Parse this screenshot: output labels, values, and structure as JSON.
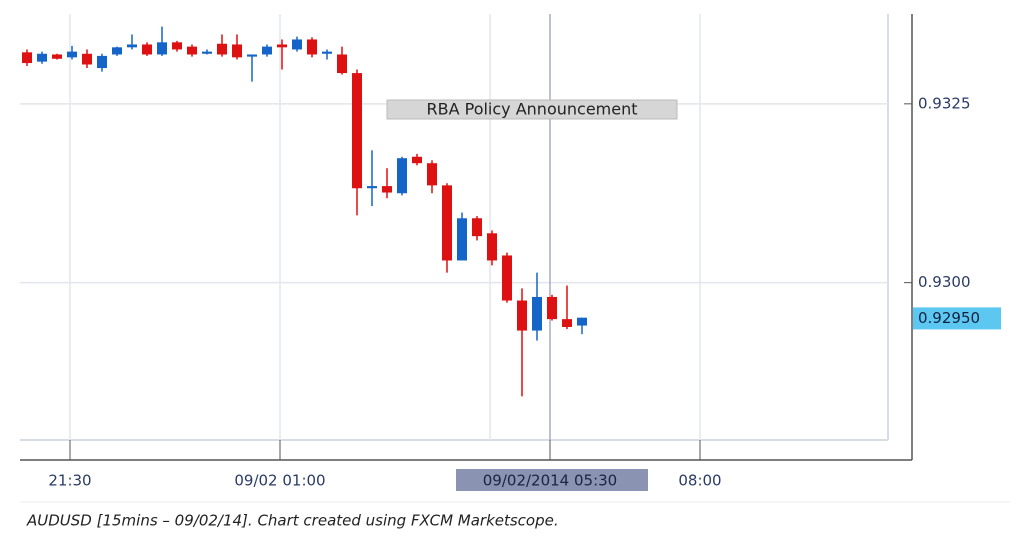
{
  "chart_data": {
    "type": "candlestick",
    "up_color": "#1565c8",
    "down_color": "#dd1111",
    "grid": true,
    "ylim": [
      0.9278,
      0.9337
    ],
    "yticks": [
      {
        "value": 0.93,
        "label": "0.9300"
      },
      0.9325
    ],
    "categories": [
      null,
      null,
      null,
      "21:30",
      null,
      null,
      null,
      null,
      null,
      null,
      null,
      null,
      null,
      null,
      null,
      null,
      null,
      "09/02 01:00",
      null,
      null,
      null,
      null,
      null,
      null,
      null,
      null,
      null,
      null,
      null,
      null,
      null,
      null,
      null,
      null,
      null,
      "09/02/2014 05:30",
      null,
      null,
      null,
      null,
      null,
      null,
      null,
      null,
      null,
      "08:00",
      null,
      null,
      null,
      null,
      null,
      null,
      null,
      null,
      null,
      null,
      null,
      null
    ],
    "open": [
      0.93322,
      0.93309,
      0.93319,
      0.93315,
      0.9332,
      0.933,
      0.93319,
      0.93329,
      0.93333,
      0.93319,
      0.93336,
      0.9333,
      0.9332,
      0.93334,
      0.93333,
      0.93316,
      0.93319,
      0.93333,
      0.93326,
      0.9334,
      0.9332,
      0.93319,
      0.93293,
      0.93132,
      0.93135,
      0.93125,
      0.93176,
      0.93167,
      0.93136,
      0.93031,
      0.9309,
      0.93069,
      0.93038,
      0.92975,
      0.92933,
      0.9298,
      0.92949,
      0.9294,
      null,
      null,
      null,
      null,
      null,
      null,
      null,
      null,
      null,
      null,
      null,
      null,
      null,
      null,
      null,
      null,
      null,
      null,
      null,
      null
    ],
    "high": [
      0.93326,
      0.93323,
      0.9332,
      0.93331,
      0.93326,
      0.9332,
      0.9333,
      0.93347,
      0.93336,
      0.93358,
      0.93338,
      0.93333,
      0.93326,
      0.93347,
      0.93347,
      0.93319,
      0.93333,
      0.9334,
      0.93344,
      0.93343,
      0.93326,
      0.9333,
      0.93298,
      0.93185,
      0.9316,
      0.93176,
      0.9318,
      0.93171,
      0.93139,
      0.93098,
      0.93093,
      0.93073,
      0.93042,
      0.92992,
      0.93014,
      0.92983,
      0.92996,
      0.92951,
      null,
      null,
      null,
      null,
      null,
      null,
      null,
      null,
      null,
      null,
      null,
      null,
      null,
      null,
      null,
      null,
      null,
      null,
      null,
      null
    ],
    "low": [
      0.93303,
      0.93306,
      0.93312,
      0.93312,
      0.933,
      0.93295,
      0.93317,
      0.93326,
      0.93317,
      0.93317,
      0.93323,
      0.93316,
      0.93319,
      0.93316,
      0.93312,
      0.93281,
      0.93316,
      0.93298,
      0.93323,
      0.93315,
      0.93312,
      0.93291,
      0.93094,
      0.93107,
      0.93118,
      0.93122,
      0.93164,
      0.93125,
      0.93014,
      0.93031,
      0.93059,
      0.93024,
      0.92972,
      0.92841,
      0.92919,
      0.92947,
      0.92935,
      0.92928,
      null,
      null,
      null,
      null,
      null,
      null,
      null,
      null,
      null,
      null,
      null,
      null,
      null,
      null,
      null,
      null,
      null,
      null,
      null,
      null
    ],
    "close": [
      0.93307,
      0.9332,
      0.93313,
      0.93323,
      0.93305,
      0.93317,
      0.93329,
      0.93333,
      0.93319,
      0.93336,
      0.93326,
      0.93319,
      0.93323,
      0.93319,
      0.93315,
      0.93319,
      0.9333,
      0.93329,
      0.9334,
      0.93319,
      0.93323,
      0.93293,
      0.93132,
      0.93135,
      0.93126,
      0.93174,
      0.93167,
      0.93136,
      0.93031,
      0.9309,
      0.93065,
      0.93031,
      0.92975,
      0.92933,
      0.9298,
      0.92949,
      0.92938,
      0.92951,
      null,
      null,
      null,
      null,
      null,
      null,
      null,
      null,
      null,
      null,
      null,
      null,
      null,
      null,
      null,
      null,
      null,
      null,
      null,
      null
    ],
    "crosshair_category": 35,
    "price_marker": {
      "value": 0.9295,
      "label": "0.92950"
    },
    "annotation": "RBA Policy Announcement",
    "caption": "AUDUSD [15mins – 09/02/14]. Chart created using FXCM Marketscope."
  }
}
